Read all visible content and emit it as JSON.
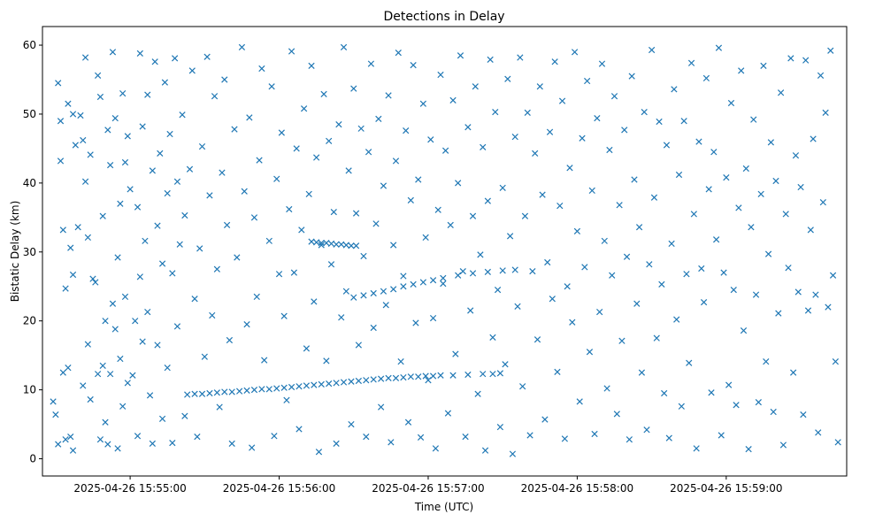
{
  "chart_data": {
    "type": "scatter",
    "title": "Detections in Delay",
    "xlabel": "Time (UTC)",
    "ylabel": "Bistatic Delay (km)",
    "x_units": "seconds after 2025-04-26 15:54:00 UTC",
    "xlim": [
      24.7,
      348.5
    ],
    "ylim": [
      -2.5,
      62.7
    ],
    "x_ticks": [
      {
        "value": 60,
        "label": "2025-04-26 15:55:00"
      },
      {
        "value": 120,
        "label": "2025-04-26 15:56:00"
      },
      {
        "value": 180,
        "label": "2025-04-26 15:57:00"
      },
      {
        "value": 240,
        "label": "2025-04-26 15:58:00"
      },
      {
        "value": 300,
        "label": "2025-04-26 15:59:00"
      }
    ],
    "y_ticks": [
      {
        "value": 0,
        "label": "0"
      },
      {
        "value": 10,
        "label": "10"
      },
      {
        "value": 20,
        "label": "20"
      },
      {
        "value": 30,
        "label": "30"
      },
      {
        "value": 40,
        "label": "40"
      },
      {
        "value": 50,
        "label": "50"
      },
      {
        "value": 60,
        "label": "60"
      }
    ],
    "marker": "x",
    "color": "#1f77b4",
    "grid": false,
    "points": [
      [
        29,
        8.3
      ],
      [
        30,
        6.4
      ],
      [
        31,
        2.1
      ],
      [
        31,
        54.5
      ],
      [
        32,
        49
      ],
      [
        32,
        43.2
      ],
      [
        33,
        33.2
      ],
      [
        33,
        12.5
      ],
      [
        34,
        24.7
      ],
      [
        34,
        2.8
      ],
      [
        35,
        51.5
      ],
      [
        35,
        13.2
      ],
      [
        36,
        30.6
      ],
      [
        36,
        3.2
      ],
      [
        37,
        1.2
      ],
      [
        37,
        26.7
      ],
      [
        37,
        50
      ],
      [
        38,
        45.5
      ],
      [
        39,
        33.6
      ],
      [
        40,
        49.8
      ],
      [
        41,
        46.2
      ],
      [
        41,
        10.6
      ],
      [
        42,
        58.2
      ],
      [
        42,
        40.2
      ],
      [
        43,
        32.1
      ],
      [
        43,
        16.6
      ],
      [
        44,
        44.1
      ],
      [
        44,
        8.6
      ],
      [
        45,
        26.1
      ],
      [
        46,
        25.6
      ],
      [
        47,
        55.6
      ],
      [
        47,
        12.3
      ],
      [
        48,
        52.5
      ],
      [
        48,
        2.8
      ],
      [
        49,
        35.2
      ],
      [
        49,
        13.5
      ],
      [
        50,
        20
      ],
      [
        50,
        5.3
      ],
      [
        51,
        47.7
      ],
      [
        51,
        2.1
      ],
      [
        52,
        42.6
      ],
      [
        52,
        12.3
      ],
      [
        53,
        22.5
      ],
      [
        53,
        59
      ],
      [
        54,
        18.8
      ],
      [
        54,
        49.4
      ],
      [
        55,
        29.2
      ],
      [
        55,
        1.5
      ],
      [
        56,
        37
      ],
      [
        56,
        14.5
      ],
      [
        57,
        53
      ],
      [
        57,
        7.6
      ],
      [
        58,
        43
      ],
      [
        58,
        23.5
      ],
      [
        59,
        46.8
      ],
      [
        59,
        11
      ],
      [
        60,
        39.1
      ],
      [
        61,
        12.1
      ],
      [
        62,
        20
      ],
      [
        63,
        36.5
      ],
      [
        63,
        3.3
      ],
      [
        64,
        58.8
      ],
      [
        64,
        26.4
      ],
      [
        65,
        48.2
      ],
      [
        65,
        17
      ],
      [
        66,
        31.6
      ],
      [
        67,
        52.8
      ],
      [
        67,
        21.3
      ],
      [
        68,
        9.2
      ],
      [
        69,
        41.8
      ],
      [
        69,
        2.2
      ],
      [
        70,
        57.6
      ],
      [
        71,
        33.8
      ],
      [
        71,
        16.5
      ],
      [
        72,
        44.3
      ],
      [
        73,
        5.8
      ],
      [
        73,
        28.3
      ],
      [
        74,
        54.6
      ],
      [
        75,
        38.5
      ],
      [
        75,
        13.2
      ],
      [
        76,
        47.1
      ],
      [
        77,
        26.9
      ],
      [
        77,
        2.3
      ],
      [
        78,
        58.1
      ],
      [
        79,
        40.2
      ],
      [
        79,
        19.2
      ],
      [
        80,
        31.1
      ],
      [
        81,
        49.9
      ],
      [
        82,
        35.3
      ],
      [
        82,
        6.2
      ],
      [
        84,
        42
      ],
      [
        85,
        56.3
      ],
      [
        86,
        23.2
      ],
      [
        87,
        3.2
      ],
      [
        88,
        30.5
      ],
      [
        89,
        45.3
      ],
      [
        90,
        14.8
      ],
      [
        91,
        58.3
      ],
      [
        92,
        38.2
      ],
      [
        93,
        20.8
      ],
      [
        94,
        52.6
      ],
      [
        95,
        27.5
      ],
      [
        96,
        7.5
      ],
      [
        97,
        41.5
      ],
      [
        98,
        55
      ],
      [
        99,
        33.9
      ],
      [
        100,
        17.2
      ],
      [
        101,
        2.2
      ],
      [
        102,
        47.8
      ],
      [
        103,
        29.2
      ],
      [
        105,
        59.7
      ],
      [
        106,
        38.8
      ],
      [
        107,
        19.5
      ],
      [
        108,
        49.5
      ],
      [
        109,
        1.6
      ],
      [
        110,
        35
      ],
      [
        111,
        23.5
      ],
      [
        112,
        43.3
      ],
      [
        113,
        56.6
      ],
      [
        114,
        14.3
      ],
      [
        116,
        31.6
      ],
      [
        117,
        54
      ],
      [
        118,
        3.3
      ],
      [
        119,
        40.6
      ],
      [
        120,
        26.8
      ],
      [
        121,
        47.3
      ],
      [
        122,
        20.7
      ],
      [
        123,
        8.5
      ],
      [
        124,
        36.2
      ],
      [
        125,
        59.1
      ],
      [
        126,
        27
      ],
      [
        127,
        45
      ],
      [
        128,
        4.3
      ],
      [
        129,
        33.2
      ],
      [
        130,
        50.8
      ],
      [
        131,
        16
      ],
      [
        132,
        38.4
      ],
      [
        133,
        57
      ],
      [
        134,
        22.8
      ],
      [
        135,
        43.7
      ],
      [
        136,
        1
      ],
      [
        137,
        31
      ],
      [
        138,
        52.9
      ],
      [
        139,
        14.2
      ],
      [
        140,
        46.1
      ],
      [
        141,
        28.2
      ],
      [
        142,
        35.8
      ],
      [
        143,
        2.2
      ],
      [
        144,
        48.5
      ],
      [
        145,
        20.5
      ],
      [
        146,
        59.7
      ],
      [
        147,
        24.3
      ],
      [
        148,
        41.8
      ],
      [
        149,
        5
      ],
      [
        150,
        53.7
      ],
      [
        151,
        35.6
      ],
      [
        152,
        16.5
      ],
      [
        153,
        47.9
      ],
      [
        154,
        29.4
      ],
      [
        155,
        3.2
      ],
      [
        156,
        44.5
      ],
      [
        157,
        57.3
      ],
      [
        158,
        19
      ],
      [
        159,
        34.1
      ],
      [
        160,
        49.3
      ],
      [
        161,
        7.5
      ],
      [
        162,
        39.6
      ],
      [
        163,
        22.3
      ],
      [
        164,
        52.7
      ],
      [
        165,
        2.4
      ],
      [
        166,
        31
      ],
      [
        167,
        43.2
      ],
      [
        168,
        58.9
      ],
      [
        169,
        14.1
      ],
      [
        170,
        26.5
      ],
      [
        171,
        47.6
      ],
      [
        172,
        5.3
      ],
      [
        173,
        37.5
      ],
      [
        174,
        57.1
      ],
      [
        175,
        19.7
      ],
      [
        176,
        40.5
      ],
      [
        177,
        3.1
      ],
      [
        178,
        51.5
      ],
      [
        179,
        32.1
      ],
      [
        180,
        11.4
      ],
      [
        181,
        46.3
      ],
      [
        182,
        20.4
      ],
      [
        183,
        1.5
      ],
      [
        184,
        36.1
      ],
      [
        185,
        55.7
      ],
      [
        186,
        25.4
      ],
      [
        187,
        44.7
      ],
      [
        188,
        6.6
      ],
      [
        189,
        33.9
      ],
      [
        190,
        52
      ],
      [
        191,
        15.2
      ],
      [
        192,
        40
      ],
      [
        193,
        58.5
      ],
      [
        194,
        27.2
      ],
      [
        195,
        3.2
      ],
      [
        196,
        48.1
      ],
      [
        197,
        21.5
      ],
      [
        198,
        35.2
      ],
      [
        199,
        54
      ],
      [
        200,
        9.4
      ],
      [
        201,
        29.6
      ],
      [
        202,
        45.2
      ],
      [
        203,
        1.2
      ],
      [
        204,
        37.4
      ],
      [
        205,
        57.9
      ],
      [
        206,
        17.6
      ],
      [
        207,
        50.3
      ],
      [
        208,
        24.5
      ],
      [
        209,
        4.6
      ],
      [
        210,
        39.3
      ],
      [
        211,
        13.7
      ],
      [
        212,
        55.1
      ],
      [
        213,
        32.3
      ],
      [
        214,
        0.7
      ],
      [
        215,
        46.7
      ],
      [
        216,
        22.1
      ],
      [
        217,
        58.2
      ],
      [
        218,
        10.5
      ],
      [
        219,
        35.2
      ],
      [
        220,
        50.2
      ],
      [
        221,
        3.4
      ],
      [
        222,
        27.2
      ],
      [
        223,
        44.3
      ],
      [
        224,
        17.3
      ],
      [
        225,
        54
      ],
      [
        226,
        38.3
      ],
      [
        227,
        5.7
      ],
      [
        228,
        28.5
      ],
      [
        229,
        47.4
      ],
      [
        230,
        23.2
      ],
      [
        231,
        57.6
      ],
      [
        232,
        12.6
      ],
      [
        233,
        36.7
      ],
      [
        234,
        51.9
      ],
      [
        235,
        2.9
      ],
      [
        236,
        25
      ],
      [
        237,
        42.2
      ],
      [
        238,
        19.8
      ],
      [
        239,
        59
      ],
      [
        240,
        33
      ],
      [
        241,
        8.3
      ],
      [
        242,
        46.5
      ],
      [
        243,
        27.8
      ],
      [
        244,
        54.8
      ],
      [
        245,
        15.5
      ],
      [
        246,
        38.9
      ],
      [
        247,
        3.6
      ],
      [
        248,
        49.4
      ],
      [
        249,
        21.3
      ],
      [
        250,
        57.3
      ],
      [
        251,
        31.6
      ],
      [
        252,
        10.2
      ],
      [
        253,
        44.8
      ],
      [
        254,
        26.6
      ],
      [
        255,
        52.6
      ],
      [
        256,
        6.5
      ],
      [
        257,
        36.8
      ],
      [
        258,
        17.1
      ],
      [
        259,
        47.7
      ],
      [
        260,
        29.3
      ],
      [
        261,
        2.8
      ],
      [
        262,
        55.5
      ],
      [
        263,
        40.5
      ],
      [
        264,
        22.5
      ],
      [
        265,
        33.6
      ],
      [
        266,
        12.5
      ],
      [
        267,
        50.3
      ],
      [
        268,
        4.2
      ],
      [
        269,
        28.2
      ],
      [
        270,
        59.3
      ],
      [
        271,
        37.9
      ],
      [
        272,
        17.5
      ],
      [
        273,
        48.9
      ],
      [
        274,
        25.3
      ],
      [
        275,
        9.5
      ],
      [
        276,
        45.5
      ],
      [
        277,
        3
      ],
      [
        278,
        31.2
      ],
      [
        279,
        53.6
      ],
      [
        280,
        20.2
      ],
      [
        281,
        41.2
      ],
      [
        282,
        7.6
      ],
      [
        283,
        49
      ],
      [
        284,
        26.8
      ],
      [
        285,
        13.9
      ],
      [
        286,
        57.4
      ],
      [
        287,
        35.5
      ],
      [
        288,
        1.5
      ],
      [
        289,
        46
      ],
      [
        290,
        27.6
      ],
      [
        291,
        22.7
      ],
      [
        292,
        55.2
      ],
      [
        293,
        39.1
      ],
      [
        294,
        9.6
      ],
      [
        295,
        44.5
      ],
      [
        296,
        31.8
      ],
      [
        297,
        59.6
      ],
      [
        298,
        3.4
      ],
      [
        299,
        27
      ],
      [
        300,
        40.8
      ],
      [
        301,
        10.7
      ],
      [
        302,
        51.6
      ],
      [
        303,
        24.5
      ],
      [
        304,
        7.8
      ],
      [
        305,
        36.4
      ],
      [
        306,
        56.3
      ],
      [
        307,
        18.6
      ],
      [
        308,
        42.1
      ],
      [
        309,
        1.4
      ],
      [
        310,
        33.6
      ],
      [
        311,
        49.2
      ],
      [
        312,
        23.8
      ],
      [
        313,
        8.2
      ],
      [
        314,
        38.4
      ],
      [
        315,
        57
      ],
      [
        316,
        14.1
      ],
      [
        317,
        29.7
      ],
      [
        318,
        45.9
      ],
      [
        319,
        6.8
      ],
      [
        320,
        40.3
      ],
      [
        321,
        21.1
      ],
      [
        322,
        53.1
      ],
      [
        323,
        2
      ],
      [
        324,
        35.5
      ],
      [
        325,
        27.7
      ],
      [
        326,
        58.1
      ],
      [
        327,
        12.5
      ],
      [
        328,
        44
      ],
      [
        329,
        24.2
      ],
      [
        330,
        39.4
      ],
      [
        331,
        6.4
      ],
      [
        332,
        57.8
      ],
      [
        333,
        21.5
      ],
      [
        334,
        33.2
      ],
      [
        335,
        46.4
      ],
      [
        336,
        23.8
      ],
      [
        337,
        3.8
      ],
      [
        338,
        55.6
      ],
      [
        339,
        37.2
      ],
      [
        340,
        50.2
      ],
      [
        341,
        22
      ],
      [
        342,
        59.2
      ],
      [
        343,
        26.6
      ],
      [
        344,
        14.1
      ],
      [
        345,
        2.4
      ],
      [
        83,
        9.3
      ],
      [
        86,
        9.4
      ],
      [
        89,
        9.4
      ],
      [
        92,
        9.5
      ],
      [
        95,
        9.6
      ],
      [
        98,
        9.7
      ],
      [
        101,
        9.7
      ],
      [
        104,
        9.8
      ],
      [
        107,
        9.9
      ],
      [
        110,
        10
      ],
      [
        113,
        10.1
      ],
      [
        116,
        10.1
      ],
      [
        119,
        10.2
      ],
      [
        122,
        10.3
      ],
      [
        125,
        10.4
      ],
      [
        128,
        10.5
      ],
      [
        131,
        10.6
      ],
      [
        134,
        10.7
      ],
      [
        137,
        10.8
      ],
      [
        140,
        10.9
      ],
      [
        143,
        11
      ],
      [
        146,
        11.1
      ],
      [
        149,
        11.2
      ],
      [
        152,
        11.3
      ],
      [
        155,
        11.4
      ],
      [
        158,
        11.5
      ],
      [
        161,
        11.6
      ],
      [
        164,
        11.7
      ],
      [
        167,
        11.7
      ],
      [
        170,
        11.8
      ],
      [
        173,
        11.9
      ],
      [
        176,
        11.9
      ],
      [
        179,
        12
      ],
      [
        182,
        12
      ],
      [
        185,
        12.1
      ],
      [
        190,
        12.1
      ],
      [
        196,
        12.2
      ],
      [
        202,
        12.3
      ],
      [
        206,
        12.3
      ],
      [
        209,
        12.4
      ],
      [
        133,
        31.5
      ],
      [
        135,
        31.4
      ],
      [
        137,
        31.3
      ],
      [
        139,
        31.3
      ],
      [
        141,
        31.2
      ],
      [
        143,
        31.1
      ],
      [
        145,
        31.1
      ],
      [
        147,
        31
      ],
      [
        149,
        30.9
      ],
      [
        151,
        30.9
      ],
      [
        150,
        23.4
      ],
      [
        154,
        23.7
      ],
      [
        158,
        24
      ],
      [
        162,
        24.3
      ],
      [
        166,
        24.6
      ],
      [
        170,
        25
      ],
      [
        174,
        25.3
      ],
      [
        178,
        25.6
      ],
      [
        182,
        25.9
      ],
      [
        186,
        26.2
      ],
      [
        192,
        26.6
      ],
      [
        198,
        26.9
      ],
      [
        204,
        27.1
      ],
      [
        210,
        27.3
      ],
      [
        215,
        27.4
      ]
    ]
  }
}
